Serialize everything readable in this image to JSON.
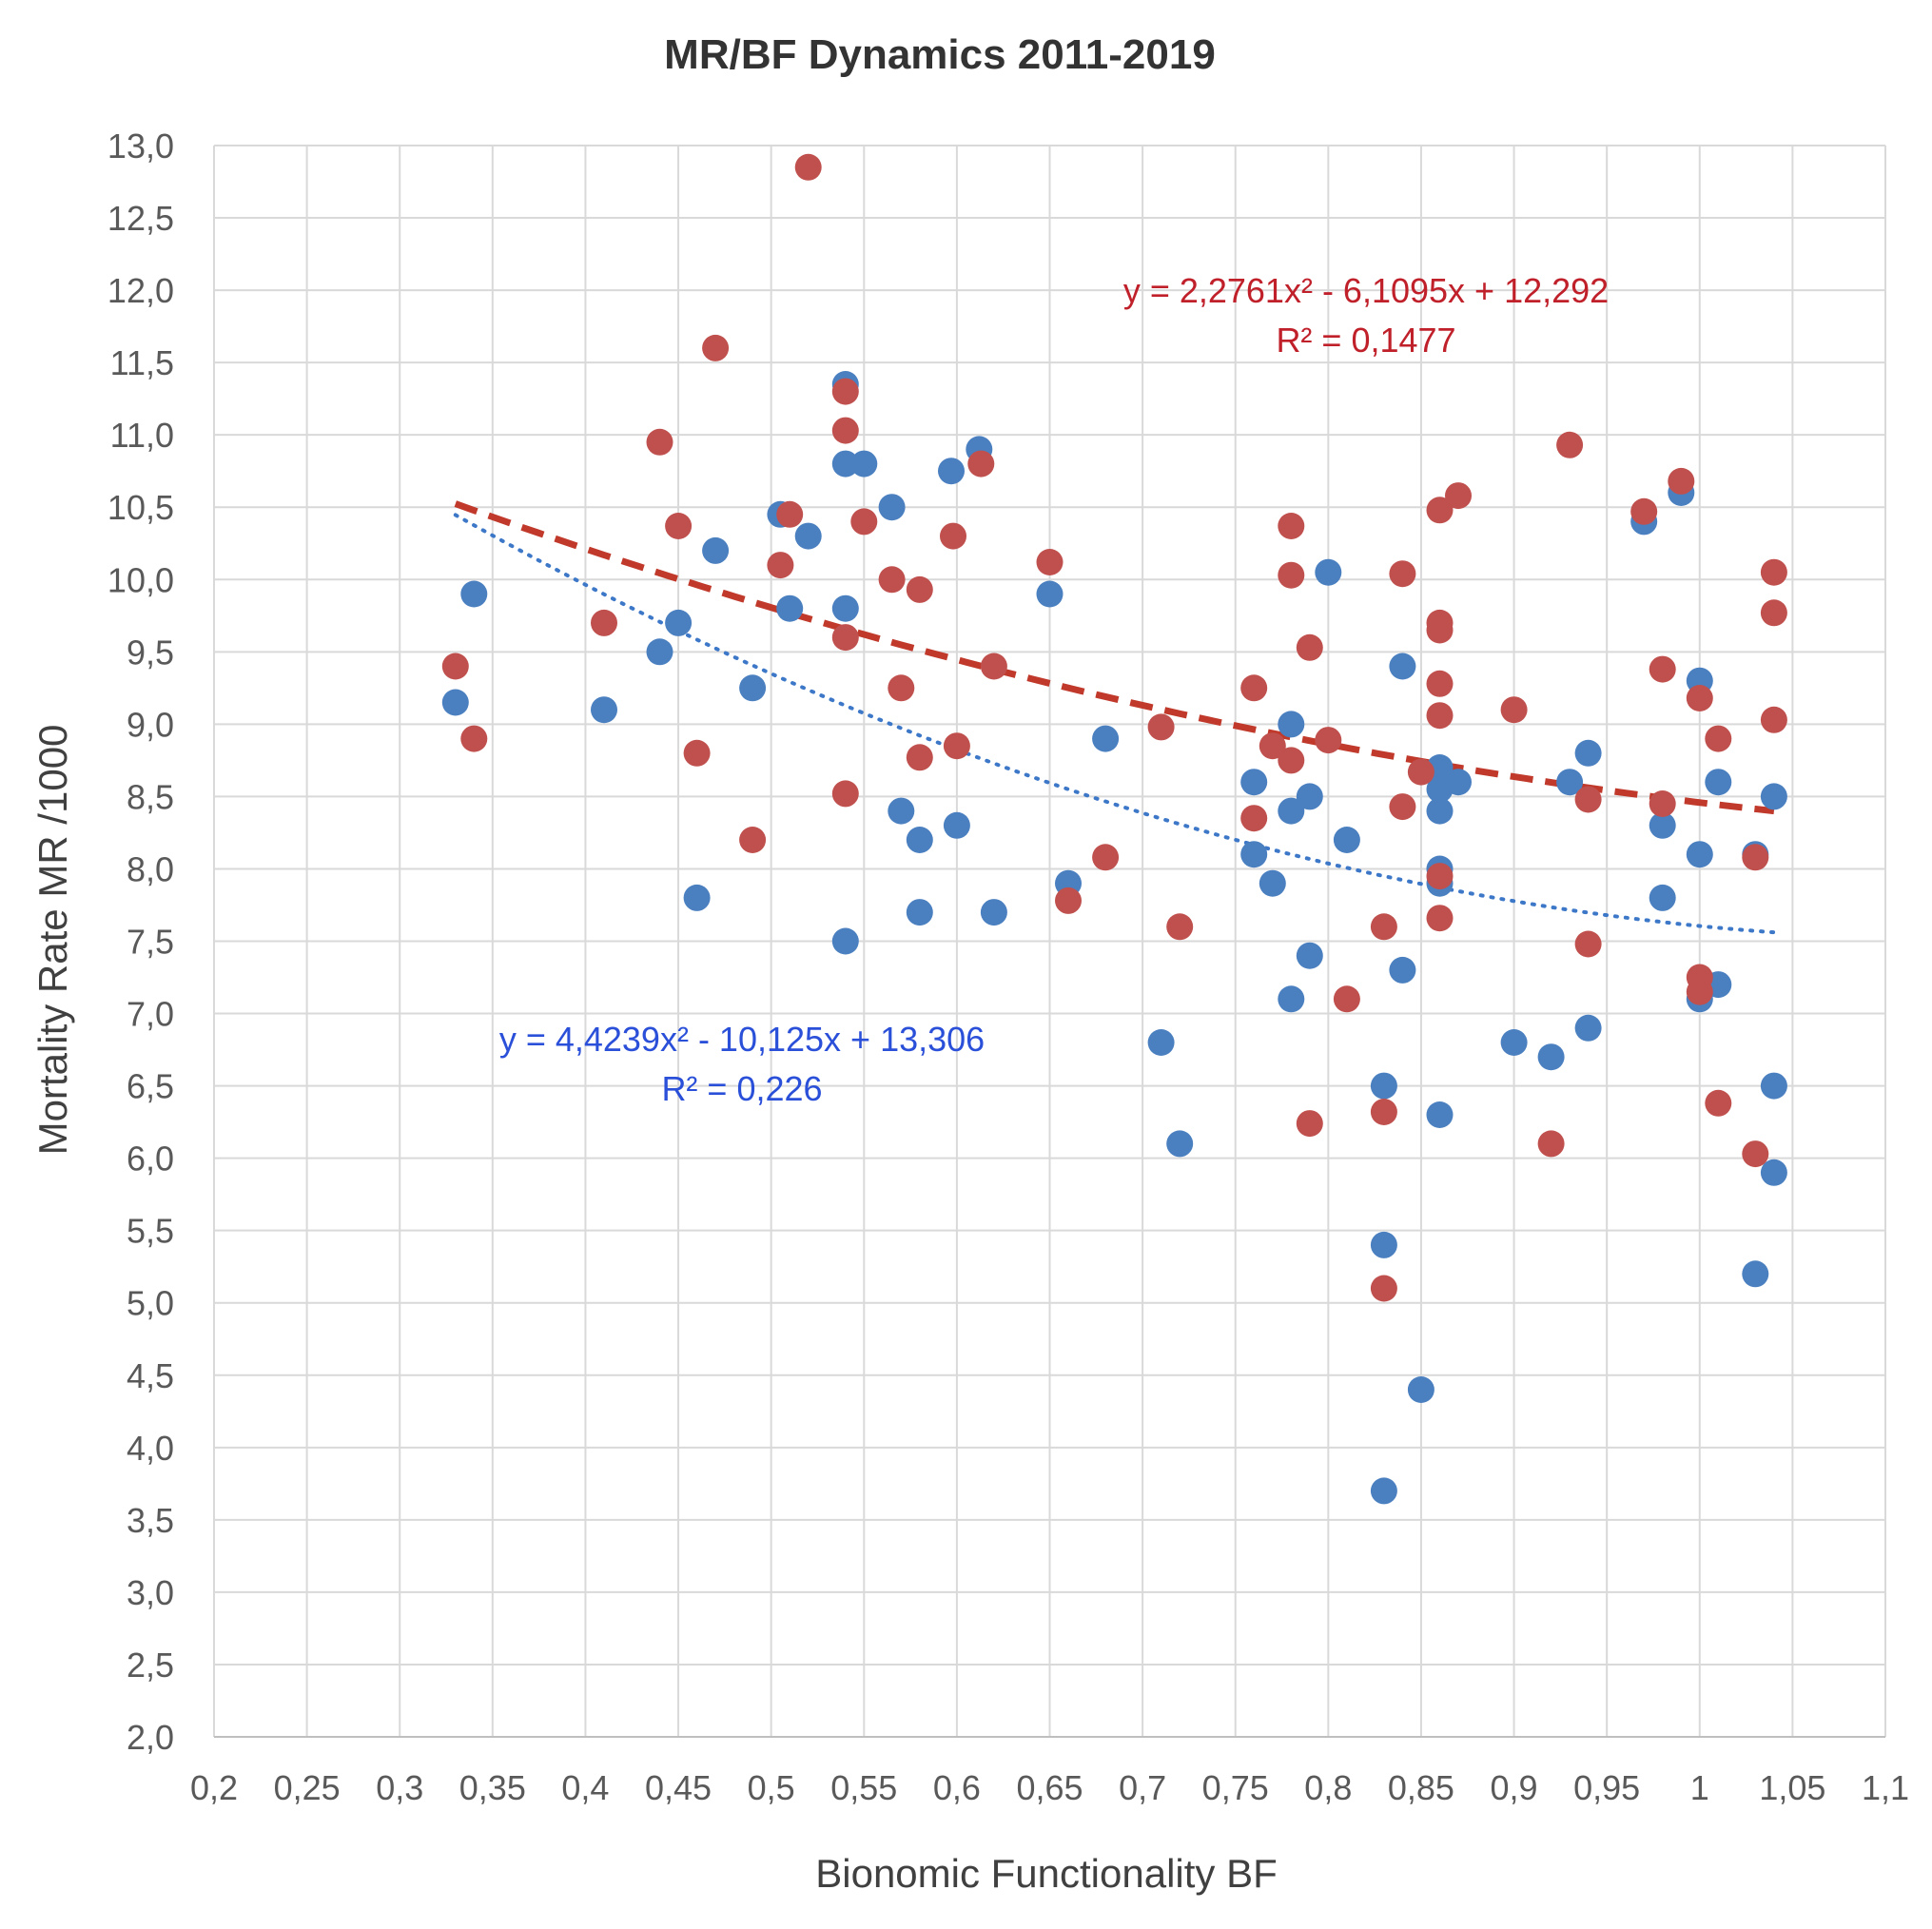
{
  "chart_data": {
    "type": "scatter",
    "title": "MR/BF Dynamics 2011-2019",
    "xlabel": "Bionomic Functionality BF",
    "ylabel": "Mortality Rate MR /1000",
    "xlim": [
      0.2,
      1.1
    ],
    "ylim": [
      2.0,
      13.0
    ],
    "grid": true,
    "x_ticks": [
      0.2,
      0.25,
      0.3,
      0.35,
      0.4,
      0.45,
      0.5,
      0.55,
      0.6,
      0.65,
      0.7,
      0.75,
      0.8,
      0.85,
      0.9,
      0.95,
      1.0,
      1.05,
      1.1
    ],
    "x_tick_labels": [
      "0,2",
      "0,25",
      "0,3",
      "0,35",
      "0,4",
      "0,45",
      "0,5",
      "0,55",
      "0,6",
      "0,65",
      "0,7",
      "0,75",
      "0,8",
      "0,85",
      "0,9",
      "0,95",
      "1",
      "1,05",
      "1,1"
    ],
    "y_ticks": [
      2.0,
      2.5,
      3.0,
      3.5,
      4.0,
      4.5,
      5.0,
      5.5,
      6.0,
      6.5,
      7.0,
      7.5,
      8.0,
      8.5,
      9.0,
      9.5,
      10.0,
      10.5,
      11.0,
      11.5,
      12.0,
      12.5,
      13.0
    ],
    "y_tick_labels": [
      "2,0",
      "2,5",
      "3,0",
      "3,5",
      "4,0",
      "4,5",
      "5,0",
      "5,5",
      "6,0",
      "6,5",
      "7,0",
      "7,5",
      "8,0",
      "8,5",
      "9,0",
      "9,5",
      "10,0",
      "10,5",
      "11,0",
      "11,5",
      "12,0",
      "12,5",
      "13,0"
    ],
    "series": [
      {
        "name": "blue",
        "color": "#4a7fc0",
        "points": [
          [
            0.33,
            9.15
          ],
          [
            0.34,
            9.9
          ],
          [
            0.41,
            9.1
          ],
          [
            0.44,
            9.5
          ],
          [
            0.45,
            9.7
          ],
          [
            0.46,
            7.8
          ],
          [
            0.47,
            10.2
          ],
          [
            0.49,
            9.25
          ],
          [
            0.505,
            10.45
          ],
          [
            0.51,
            9.8
          ],
          [
            0.52,
            10.3
          ],
          [
            0.54,
            11.35
          ],
          [
            0.54,
            10.8
          ],
          [
            0.55,
            10.8
          ],
          [
            0.54,
            9.8
          ],
          [
            0.54,
            7.5
          ],
          [
            0.565,
            10.5
          ],
          [
            0.57,
            8.4
          ],
          [
            0.58,
            8.2
          ],
          [
            0.58,
            7.7
          ],
          [
            0.597,
            10.75
          ],
          [
            0.6,
            8.3
          ],
          [
            0.612,
            10.9
          ],
          [
            0.62,
            7.7
          ],
          [
            0.65,
            9.9
          ],
          [
            0.66,
            7.9
          ],
          [
            0.68,
            8.9
          ],
          [
            0.71,
            6.8
          ],
          [
            0.72,
            6.1
          ],
          [
            0.76,
            8.6
          ],
          [
            0.76,
            8.1
          ],
          [
            0.77,
            7.9
          ],
          [
            0.78,
            9.0
          ],
          [
            0.78,
            8.4
          ],
          [
            0.78,
            7.1
          ],
          [
            0.79,
            8.5
          ],
          [
            0.79,
            7.4
          ],
          [
            0.8,
            10.05
          ],
          [
            0.81,
            8.2
          ],
          [
            0.83,
            6.5
          ],
          [
            0.83,
            5.4
          ],
          [
            0.83,
            3.7
          ],
          [
            0.84,
            9.4
          ],
          [
            0.84,
            7.3
          ],
          [
            0.85,
            4.4
          ],
          [
            0.86,
            8.7
          ],
          [
            0.86,
            8.55
          ],
          [
            0.86,
            8.4
          ],
          [
            0.86,
            8.0
          ],
          [
            0.86,
            7.9
          ],
          [
            0.86,
            6.3
          ],
          [
            0.87,
            8.6
          ],
          [
            0.9,
            6.8
          ],
          [
            0.92,
            6.7
          ],
          [
            0.93,
            8.6
          ],
          [
            0.94,
            8.8
          ],
          [
            0.94,
            6.9
          ],
          [
            0.97,
            10.4
          ],
          [
            0.98,
            8.3
          ],
          [
            0.98,
            7.8
          ],
          [
            0.99,
            10.6
          ],
          [
            1.0,
            9.3
          ],
          [
            1.0,
            8.1
          ],
          [
            1.0,
            7.1
          ],
          [
            1.01,
            8.6
          ],
          [
            1.01,
            7.2
          ],
          [
            1.03,
            8.1
          ],
          [
            1.03,
            5.2
          ],
          [
            1.04,
            8.5
          ],
          [
            1.04,
            6.5
          ],
          [
            1.04,
            5.9
          ]
        ],
        "trend": {
          "type": "poly2",
          "coefficients": [
            4.4239,
            -10.125,
            13.306
          ],
          "x_range": [
            0.33,
            1.04
          ],
          "equation": "y = 4,4239x² - 10,125x + 13,306",
          "r2": "R² = 0,226"
        }
      },
      {
        "name": "red",
        "color": "#c0504d",
        "points": [
          [
            0.33,
            9.4
          ],
          [
            0.34,
            8.9
          ],
          [
            0.41,
            9.7
          ],
          [
            0.44,
            10.95
          ],
          [
            0.45,
            10.37
          ],
          [
            0.46,
            8.8
          ],
          [
            0.47,
            11.6
          ],
          [
            0.49,
            8.2
          ],
          [
            0.505,
            10.1
          ],
          [
            0.51,
            10.45
          ],
          [
            0.52,
            12.85
          ],
          [
            0.54,
            11.3
          ],
          [
            0.54,
            11.03
          ],
          [
            0.55,
            10.4
          ],
          [
            0.54,
            9.6
          ],
          [
            0.54,
            8.52
          ],
          [
            0.565,
            10.0
          ],
          [
            0.57,
            9.25
          ],
          [
            0.58,
            9.93
          ],
          [
            0.58,
            8.77
          ],
          [
            0.598,
            10.3
          ],
          [
            0.6,
            8.85
          ],
          [
            0.613,
            10.8
          ],
          [
            0.62,
            9.4
          ],
          [
            0.65,
            10.12
          ],
          [
            0.66,
            7.78
          ],
          [
            0.68,
            8.08
          ],
          [
            0.71,
            8.98
          ],
          [
            0.72,
            7.6
          ],
          [
            0.76,
            9.25
          ],
          [
            0.76,
            8.35
          ],
          [
            0.77,
            8.85
          ],
          [
            0.78,
            10.37
          ],
          [
            0.78,
            10.03
          ],
          [
            0.78,
            8.75
          ],
          [
            0.79,
            9.53
          ],
          [
            0.79,
            6.24
          ],
          [
            0.8,
            8.89
          ],
          [
            0.81,
            7.1
          ],
          [
            0.83,
            7.6
          ],
          [
            0.83,
            6.32
          ],
          [
            0.83,
            5.1
          ],
          [
            0.84,
            10.04
          ],
          [
            0.84,
            8.43
          ],
          [
            0.85,
            8.67
          ],
          [
            0.86,
            10.48
          ],
          [
            0.87,
            10.58
          ],
          [
            0.86,
            9.7
          ],
          [
            0.86,
            9.65
          ],
          [
            0.86,
            9.28
          ],
          [
            0.86,
            9.06
          ],
          [
            0.86,
            7.95
          ],
          [
            0.86,
            7.66
          ],
          [
            0.9,
            9.1
          ],
          [
            0.92,
            6.1
          ],
          [
            0.93,
            10.93
          ],
          [
            0.94,
            8.48
          ],
          [
            0.94,
            7.48
          ],
          [
            0.97,
            10.47
          ],
          [
            0.98,
            9.38
          ],
          [
            0.98,
            8.45
          ],
          [
            0.99,
            10.68
          ],
          [
            1.0,
            9.18
          ],
          [
            1.0,
            7.25
          ],
          [
            1.0,
            7.15
          ],
          [
            1.01,
            8.9
          ],
          [
            1.01,
            6.38
          ],
          [
            1.03,
            8.08
          ],
          [
            1.03,
            6.03
          ],
          [
            1.04,
            10.05
          ],
          [
            1.04,
            9.77
          ],
          [
            1.04,
            9.03
          ]
        ],
        "trend": {
          "type": "poly2",
          "coefficients": [
            2.2761,
            -6.1095,
            12.292
          ],
          "x_range": [
            0.33,
            1.04
          ],
          "equation": "y = 2,2761x² - 6,1095x + 12,292",
          "r2": "R² = 0,1477"
        }
      }
    ]
  }
}
